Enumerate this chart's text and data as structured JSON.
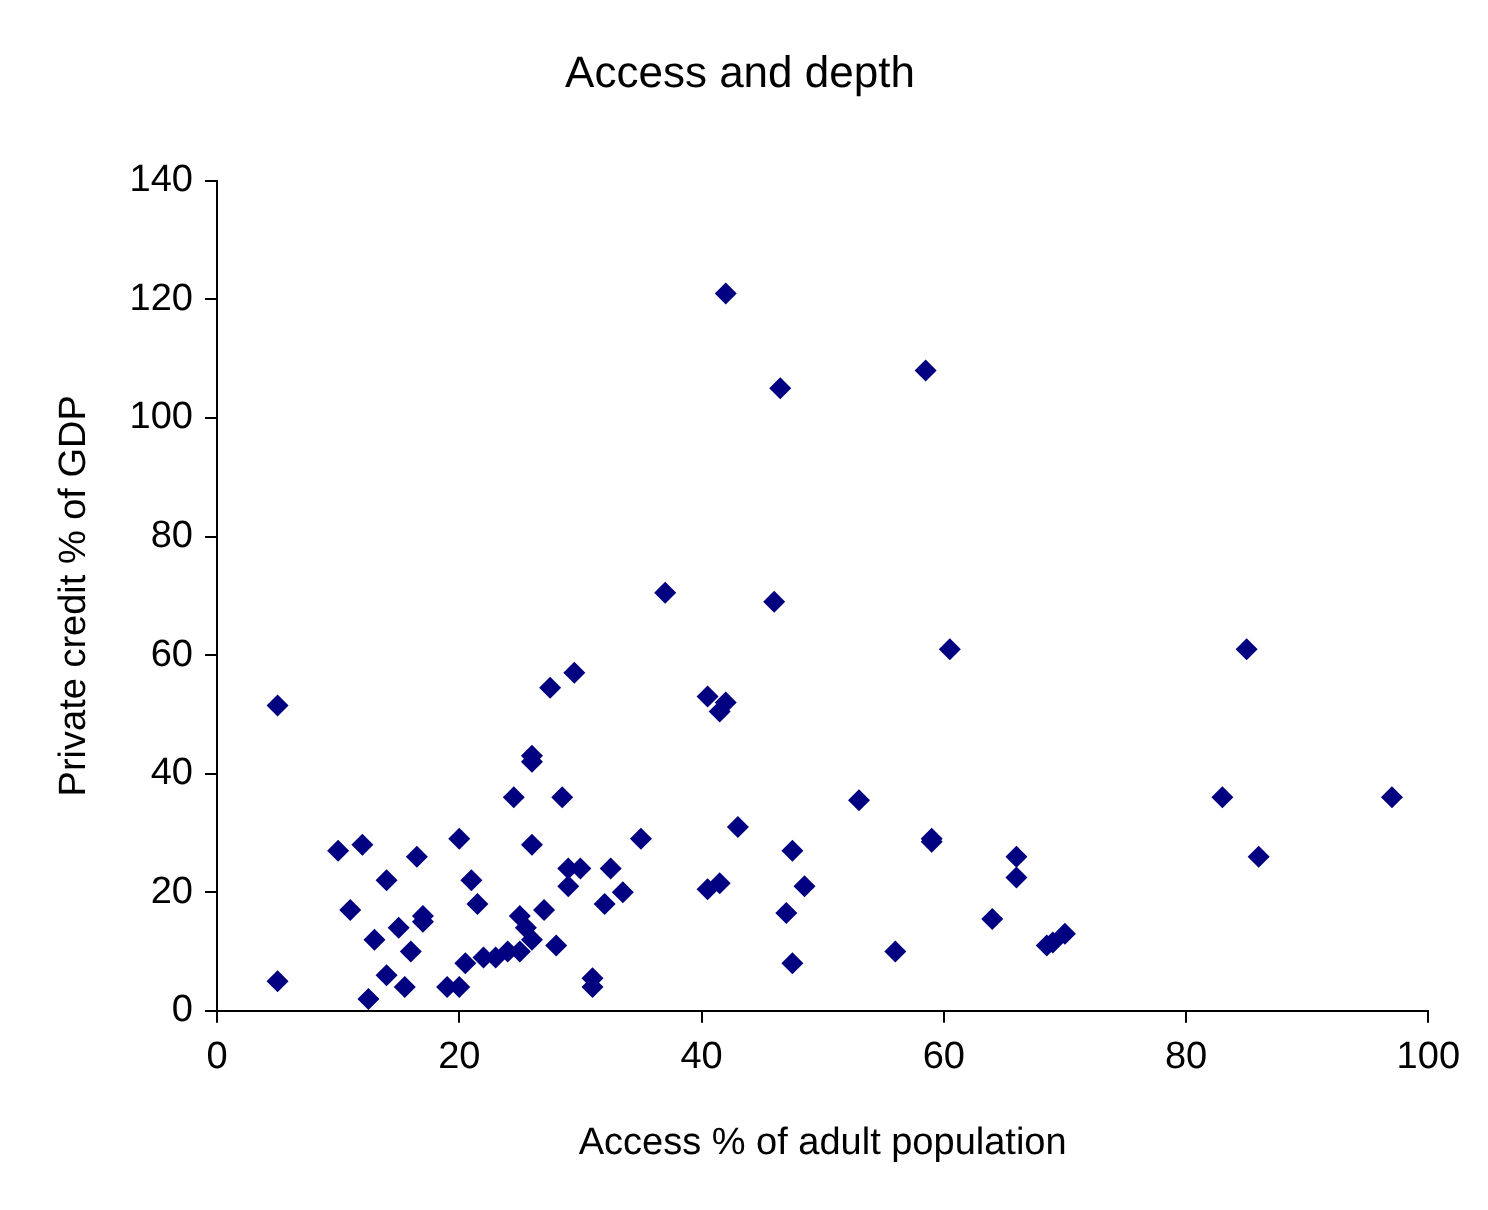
{
  "chart_data": {
    "type": "scatter",
    "title": "Access and depth",
    "xlabel": "Access % of adult population",
    "ylabel": "Private credit % of GDP",
    "x": [
      5,
      5,
      10,
      11,
      12,
      12.5,
      13,
      14,
      14,
      15,
      15.5,
      16,
      16.5,
      17,
      17,
      19,
      20,
      20,
      20.5,
      21,
      21.5,
      22,
      23,
      24,
      24.5,
      25,
      25,
      25.5,
      26,
      26,
      26,
      26,
      27,
      27.5,
      28,
      28.5,
      29,
      29,
      29.5,
      30,
      31,
      31,
      32,
      32.5,
      33.5,
      35,
      37,
      40.5,
      40.5,
      41.5,
      41.5,
      42,
      42,
      43,
      46,
      46.5,
      47,
      47.5,
      47.5,
      48.5,
      53,
      56,
      58.5,
      59,
      59,
      60.5,
      64,
      66,
      66,
      68.5,
      69,
      70,
      83,
      85,
      86,
      97
    ],
    "series": [
      {
        "color": "#000080",
        "values": [
          51.5,
          5,
          27,
          17,
          28,
          2,
          12,
          6,
          22,
          14,
          4,
          10,
          26,
          15,
          16,
          4,
          29,
          4,
          8,
          22,
          18,
          9,
          9,
          10,
          36,
          16,
          10,
          14,
          43,
          42,
          28,
          12,
          17,
          54.5,
          11,
          36,
          24,
          21,
          57,
          24,
          4,
          5.5,
          18,
          24,
          20,
          29,
          70.5,
          20.5,
          53,
          21.5,
          50.5,
          121,
          52,
          31,
          69,
          105,
          16.5,
          27,
          8,
          21,
          35.5,
          10,
          108,
          29,
          28.5,
          61,
          15.5,
          26,
          22.5,
          11,
          11.5,
          13,
          36,
          61,
          26,
          36
        ]
      }
    ],
    "xlim": [
      0,
      100
    ],
    "xticks": [
      0,
      20,
      40,
      60,
      80,
      100
    ],
    "ylim": [
      0,
      140
    ],
    "yticks": [
      0,
      20,
      40,
      60,
      80,
      100,
      120,
      140
    ],
    "grid": false,
    "legend": false,
    "marker": "diamond"
  }
}
